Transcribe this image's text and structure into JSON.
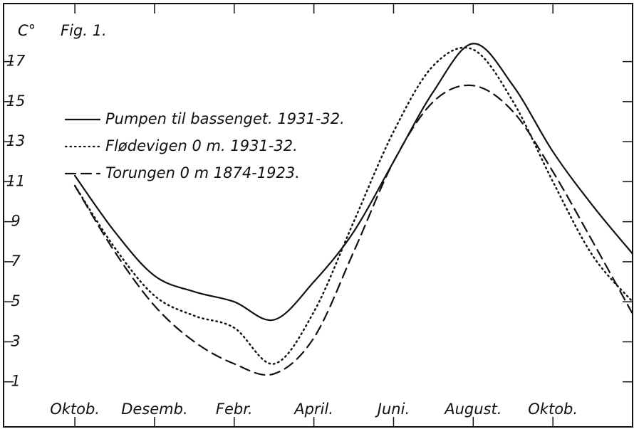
{
  "chart_data": {
    "type": "line",
    "title": "Fig. 1.",
    "y_label": "C°",
    "x": [
      0,
      1,
      2,
      3,
      4,
      5,
      6,
      7,
      8,
      9,
      10,
      11,
      12,
      13,
      14
    ],
    "xlim": [
      -1.79,
      14
    ],
    "xticks": [
      {
        "value": 0,
        "label": "Oktob."
      },
      {
        "value": 2,
        "label": "Desemb."
      },
      {
        "value": 4,
        "label": "Febr."
      },
      {
        "value": 6,
        "label": "April."
      },
      {
        "value": 8,
        "label": "Juni."
      },
      {
        "value": 10,
        "label": "August."
      },
      {
        "value": 12,
        "label": "Oktob."
      }
    ],
    "ylim": [
      -1.25,
      19.9
    ],
    "yticks": [
      1,
      3,
      5,
      7,
      9,
      11,
      13,
      15,
      17
    ],
    "series": [
      {
        "name": "Pumpen til bassenget. 1931-32.",
        "color": "#111111",
        "style": "solid",
        "values": [
          11.3,
          8.5,
          6.3,
          5.5,
          5.0,
          4.1,
          6.0,
          8.5,
          12.0,
          15.5,
          17.9,
          15.8,
          12.5,
          9.8,
          7.4
        ]
      },
      {
        "name": "Flødevigen 0 m. 1931-32.",
        "color": "#111111",
        "style": "dotted",
        "values": [
          10.8,
          7.7,
          5.3,
          4.3,
          3.7,
          1.9,
          4.5,
          9.0,
          13.5,
          16.8,
          17.6,
          15.0,
          11.0,
          7.3,
          5.0
        ]
      },
      {
        "name": "Torungen 0 m 1874-1923.",
        "color": "#111111",
        "style": "dashed",
        "values": [
          10.8,
          7.5,
          4.8,
          3.0,
          1.9,
          1.4,
          3.2,
          7.5,
          12.0,
          15.0,
          15.8,
          14.5,
          11.5,
          8.0,
          4.4
        ]
      }
    ],
    "legend": "upper left"
  }
}
